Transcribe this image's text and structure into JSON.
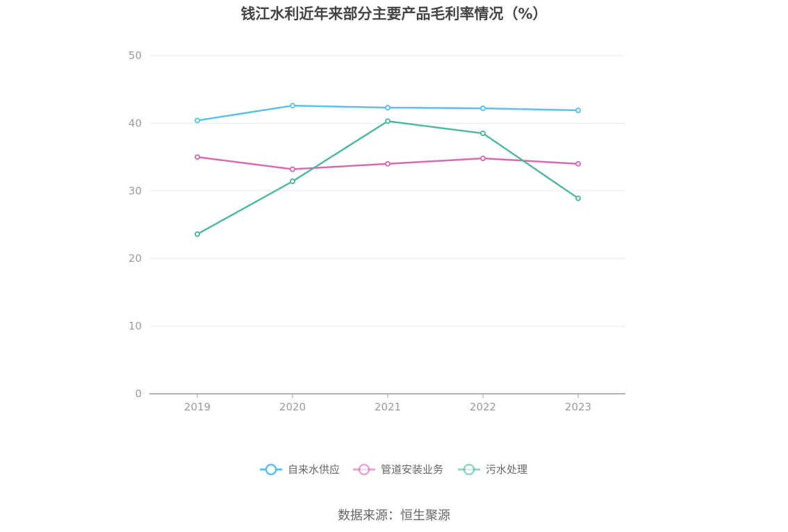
{
  "chart_data": {
    "type": "line",
    "title": "钱江水利近年来部分主要产品毛利率情况（%）",
    "categories": [
      "2019",
      "2020",
      "2021",
      "2022",
      "2023"
    ],
    "ylim": [
      0,
      50
    ],
    "yticks": [
      0,
      10,
      20,
      30,
      40,
      50
    ],
    "grid": true,
    "legend_position": "bottom",
    "series": [
      {
        "name": "自来水供应",
        "color": "#5bc0eb",
        "values": [
          40.4,
          42.6,
          42.3,
          42.2,
          41.9
        ]
      },
      {
        "name": "管道安装业务",
        "color": "#d56bb5",
        "values": [
          35.0,
          33.2,
          34.0,
          34.8,
          34.0
        ]
      },
      {
        "name": "污水处理",
        "color": "#52b7a1",
        "values": [
          23.6,
          31.4,
          40.3,
          38.5,
          28.9
        ]
      }
    ]
  },
  "source": "数据来源：恒生聚源"
}
